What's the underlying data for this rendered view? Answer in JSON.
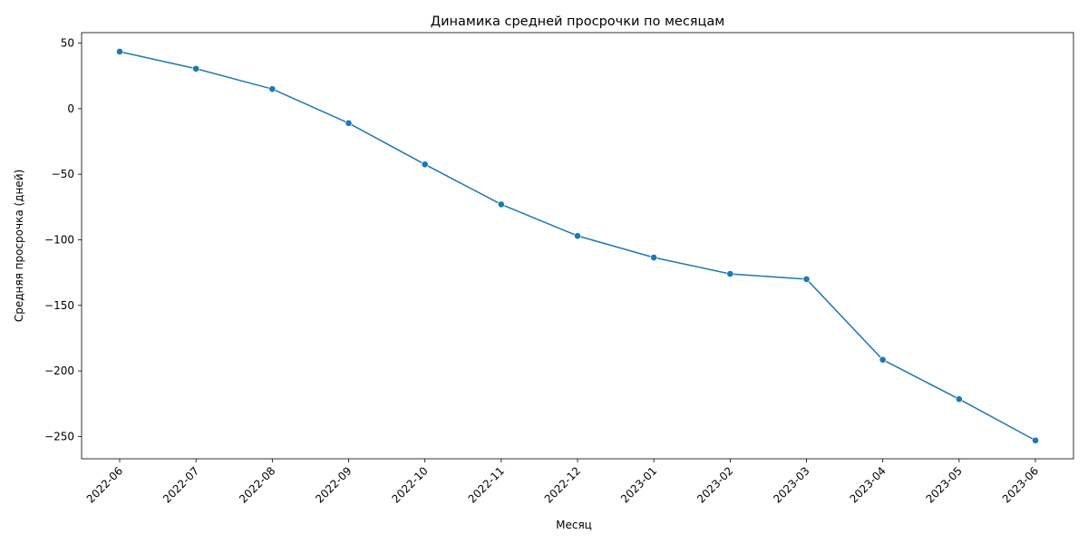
{
  "chart_data": {
    "type": "line",
    "title": "Динамика средней просрочки по месяцам",
    "xlabel": "Месяц",
    "ylabel": "Средняя просрочка (дней)",
    "categories": [
      "2022-06",
      "2022-07",
      "2022-08",
      "2022-09",
      "2022-10",
      "2022-11",
      "2022-12",
      "2023-01",
      "2023-02",
      "2023-03",
      "2023-04",
      "2023-05",
      "2023-06"
    ],
    "series": [
      {
        "values": [
          43.5,
          30.5,
          15,
          -11,
          -42.5,
          -73,
          -97,
          -113.5,
          -126,
          -130,
          -191.5,
          -221.5,
          -253
        ],
        "color": "#1f77b4"
      }
    ],
    "yticks": [
      50,
      0,
      -50,
      -100,
      -150,
      -200,
      -250
    ],
    "ylim": [
      -267,
      58
    ],
    "grid": false,
    "x_tick_rotation": 45
  }
}
